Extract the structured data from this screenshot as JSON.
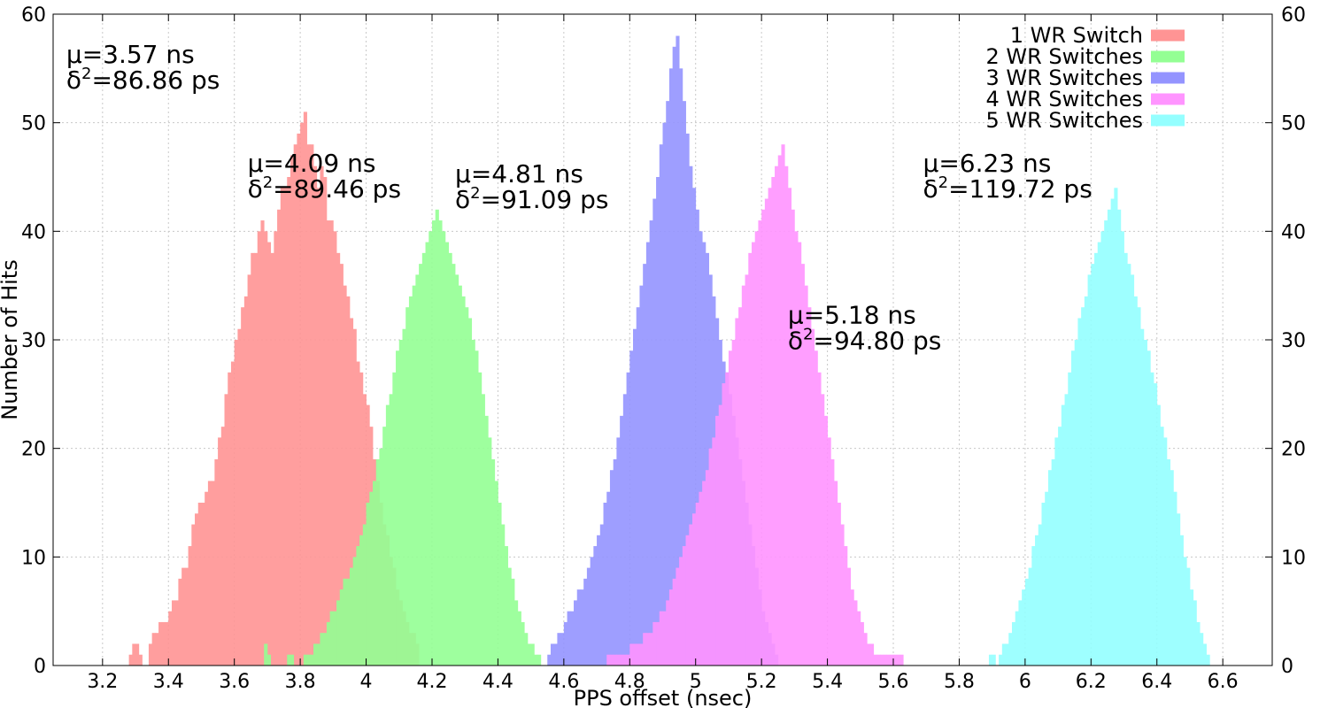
{
  "chart_data": {
    "type": "bar",
    "title": "",
    "xlabel": "PPS offset (nsec)",
    "ylabel": "Number of Hits",
    "xlim": [
      3.05,
      6.75
    ],
    "ylim": [
      0,
      60
    ],
    "xticks": [
      "3.2",
      "3.4",
      "3.6",
      "3.8",
      "4",
      "4.2",
      "4.4",
      "4.6",
      "4.8",
      "5",
      "5.2",
      "5.4",
      "5.6",
      "5.8",
      "6",
      "6.2",
      "6.4",
      "6.6"
    ],
    "yticks": [
      "0",
      "10",
      "20",
      "30",
      "40",
      "50",
      "60"
    ],
    "grid": true,
    "legend_position": "top-right",
    "bin_width": 0.01,
    "series": [
      {
        "name": "1 WR Switch",
        "color": "#ff9494",
        "x_start": 3.28,
        "values": [
          1,
          2,
          2,
          1,
          0,
          0,
          2,
          3,
          3,
          4,
          4,
          4,
          5,
          6,
          6,
          8,
          9,
          9,
          11,
          13,
          14,
          15,
          15,
          16,
          17,
          17,
          19,
          21,
          22,
          25,
          27,
          28,
          30,
          31,
          33,
          34,
          36,
          38,
          38,
          40,
          41,
          40,
          39,
          38,
          40,
          42,
          44,
          44,
          45,
          47,
          48,
          49,
          50,
          51,
          48,
          48,
          46,
          44,
          46,
          45,
          41,
          41,
          40,
          38,
          37,
          35,
          34,
          32,
          31,
          28,
          27,
          25,
          24,
          22,
          19,
          17,
          15,
          13,
          12,
          10,
          9,
          7,
          6,
          5,
          4,
          3,
          3,
          2
        ]
      },
      {
        "name": "2 WR Switches",
        "color": "#94ff94",
        "x_start": 3.68,
        "values": [
          0,
          2,
          1,
          0,
          0,
          0,
          0,
          0,
          1,
          1,
          0,
          0,
          0,
          1,
          1,
          1,
          2,
          2,
          3,
          3,
          4,
          5,
          5,
          6,
          7,
          8,
          8,
          9,
          10,
          11,
          12,
          13,
          15,
          16,
          17,
          19,
          20,
          22,
          24,
          25,
          27,
          29,
          30,
          31,
          33,
          34,
          35,
          36,
          37,
          38,
          39,
          40,
          41,
          42,
          41,
          40,
          39,
          38,
          37,
          36,
          35,
          34,
          33,
          32,
          30,
          29,
          27,
          25,
          23,
          21,
          19,
          17,
          15,
          13,
          11,
          9,
          8,
          6,
          5,
          4,
          3,
          2,
          2,
          1,
          1
        ]
      },
      {
        "name": "3 WR Switches",
        "color": "#9494ff",
        "x_start": 4.55,
        "values": [
          1,
          2,
          2,
          3,
          3,
          4,
          5,
          5,
          6,
          7,
          7,
          8,
          9,
          10,
          11,
          12,
          13,
          15,
          16,
          18,
          19,
          21,
          23,
          25,
          27,
          29,
          31,
          33,
          35,
          37,
          39,
          41,
          43,
          45,
          48,
          50,
          52,
          55,
          57,
          58,
          55,
          52,
          49,
          46,
          44,
          42,
          40,
          39,
          38,
          36,
          34,
          32,
          30,
          28,
          27,
          25,
          23,
          21,
          19,
          17,
          15,
          13,
          11,
          9,
          7,
          5,
          4,
          3,
          2,
          1
        ]
      },
      {
        "name": "4 WR Switches",
        "color": "#ff94ff",
        "x_start": 4.73,
        "values": [
          1,
          1,
          1,
          1,
          1,
          1,
          1,
          2,
          2,
          2,
          2,
          3,
          3,
          3,
          4,
          4,
          5,
          5,
          6,
          7,
          8,
          9,
          10,
          11,
          12,
          13,
          14,
          15,
          16,
          17,
          18,
          20,
          21,
          23,
          24,
          26,
          27,
          29,
          30,
          32,
          33,
          35,
          36,
          38,
          39,
          40,
          41,
          42,
          43,
          44,
          45,
          46,
          47,
          48,
          46,
          44,
          42,
          40,
          39,
          37,
          35,
          33,
          31,
          29,
          27,
          25,
          23,
          21,
          19,
          17,
          15,
          13,
          11,
          9,
          7,
          6,
          5,
          4,
          3,
          2,
          2,
          1,
          1,
          1,
          1,
          1,
          1,
          1,
          1,
          1
        ]
      },
      {
        "name": "5 WR Switches",
        "color": "#94ffff",
        "x_start": 5.89,
        "values": [
          1,
          1,
          0,
          1,
          2,
          2,
          3,
          4,
          5,
          6,
          7,
          8,
          9,
          11,
          12,
          13,
          15,
          16,
          18,
          19,
          21,
          22,
          24,
          25,
          27,
          29,
          30,
          32,
          33,
          34,
          36,
          37,
          38,
          39,
          40,
          41,
          42,
          43,
          44,
          42,
          40,
          38,
          37,
          36,
          34,
          33,
          31,
          30,
          29,
          27,
          26,
          24,
          22,
          21,
          19,
          18,
          16,
          14,
          12,
          10,
          9,
          7,
          6,
          4,
          3,
          2,
          1
        ]
      }
    ],
    "annotations": [
      {
        "mu": "μ=3.57 ns",
        "delta_pre": "δ",
        "delta_sup": "2",
        "delta_post": "=86.86 ps",
        "anchor_x": 3.09,
        "anchor_y": 55.5
      },
      {
        "mu": "μ=4.09 ns",
        "delta_pre": "δ",
        "delta_sup": "2",
        "delta_post": "=89.46 ps",
        "anchor_x": 3.64,
        "anchor_y": 45.5
      },
      {
        "mu": "μ=4.81 ns",
        "delta_pre": "δ",
        "delta_sup": "2",
        "delta_post": "=91.09 ps",
        "anchor_x": 4.27,
        "anchor_y": 44.5
      },
      {
        "mu": "μ=5.18 ns",
        "delta_pre": "δ",
        "delta_sup": "2",
        "delta_post": "=94.80 ps",
        "anchor_x": 5.28,
        "anchor_y": 31.5
      },
      {
        "mu": "μ=6.23 ns",
        "delta_pre": "δ",
        "delta_sup": "2",
        "delta_post": "=119.72 ps",
        "anchor_x": 5.69,
        "anchor_y": 45.5
      }
    ]
  }
}
